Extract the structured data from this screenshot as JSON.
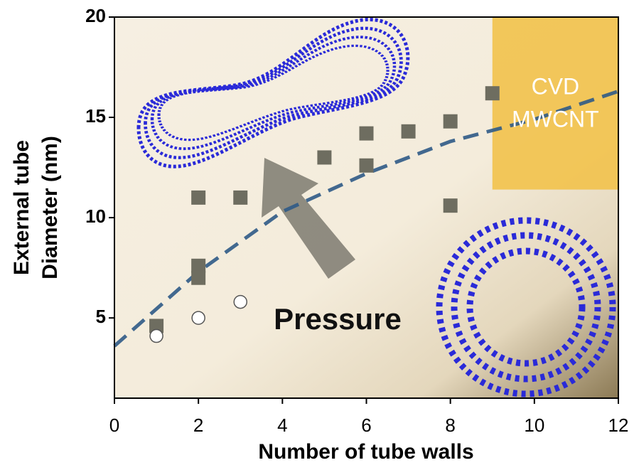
{
  "chart_data": {
    "type": "scatter",
    "xlabel": "Number of tube walls",
    "ylabel": [
      "External tube",
      "Diameter (nm)"
    ],
    "xlim": [
      0,
      12
    ],
    "ylim": [
      1,
      20
    ],
    "xticks": [
      0,
      2,
      4,
      6,
      8,
      10,
      12
    ],
    "yticks": [
      5,
      10,
      15,
      20
    ],
    "series": [
      {
        "marker": "square",
        "color": "#6e6d60",
        "x": [
          1,
          2,
          2,
          2,
          3,
          5,
          6,
          6,
          7,
          8,
          8,
          9
        ],
        "values": [
          4.6,
          11,
          7.6,
          7.0,
          11,
          13,
          14.2,
          12.6,
          14.3,
          14.8,
          10.6,
          16.2
        ]
      },
      {
        "marker": "open-circle",
        "color": "#555555",
        "x": [
          1,
          2,
          3
        ],
        "values": [
          4.1,
          5.0,
          5.8
        ]
      },
      {
        "marker": "dashed-line",
        "color": "#2f5a86",
        "x": [
          0,
          2,
          4,
          6,
          8,
          10,
          12
        ],
        "values": [
          3.6,
          7.3,
          10.3,
          12.2,
          13.8,
          14.9,
          16.3
        ]
      }
    ],
    "region": {
      "xlim": [
        9,
        12
      ],
      "ylim": [
        11.4,
        20
      ],
      "color": "#f2c24b",
      "label": [
        "CVD",
        "MWCNT"
      ]
    },
    "annotations": [
      "Pressure"
    ]
  }
}
